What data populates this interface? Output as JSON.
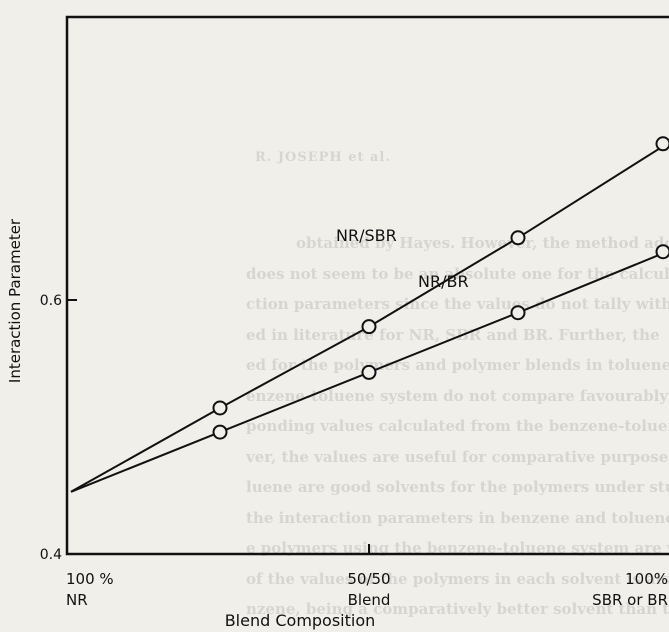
{
  "chart_data": {
    "type": "line",
    "title": "",
    "xlabel": "Blend Composition",
    "ylabel": "Interaction Parameter",
    "xlim": [
      0,
      100
    ],
    "ylim": [
      0.4,
      0.8
    ],
    "y_ticks": [
      {
        "value": 0.4,
        "label": "0.4"
      },
      {
        "value": 0.6,
        "label": "0.6"
      }
    ],
    "x_ticks": [
      {
        "value": 0,
        "line1": "100 %",
        "line2": "NR"
      },
      {
        "value": 50,
        "line1": "50/50",
        "line2": "Blend"
      },
      {
        "value": 100,
        "line1": "100%",
        "line2": "SBR or BR"
      }
    ],
    "grid": false,
    "marker": "open-circle",
    "series": [
      {
        "name": "NR/SBR",
        "points": [
          [
            0,
            0.449
          ],
          [
            25,
            0.515
          ],
          [
            50,
            0.579
          ],
          [
            75,
            0.649
          ],
          [
            100,
            0.723
          ]
        ]
      },
      {
        "name": "NR/BR",
        "points": [
          [
            0,
            0.449
          ],
          [
            25,
            0.496
          ],
          [
            50,
            0.543
          ],
          [
            75,
            0.59
          ],
          [
            100,
            0.638
          ]
        ]
      }
    ]
  },
  "background_text": {
    "header": "R. JOSEPH et al.",
    "lines": [
      "obtained by Hayes. However, the method adopted",
      "does not seem to be an absolute one for the calculation",
      "ction parameters since the values do not tally with the",
      "ed in literature for NR, SBR and BR. Further, the",
      "ed for the polymers and polymer blends in toluene",
      "enzene-toluene system do not compare favourably with",
      "ponding values calculated from the benzene-toluene system",
      "ver, the values are useful for comparative purposes. Be",
      "luene are good solvents for the polymers under study",
      "the interaction parameters in benzene and toluene obt",
      "e polymers using the benzene-toluene system are very",
      "of the values of the polymers in each solvent is also",
      "nzene, being a comparatively better solvent than tol"
    ]
  }
}
